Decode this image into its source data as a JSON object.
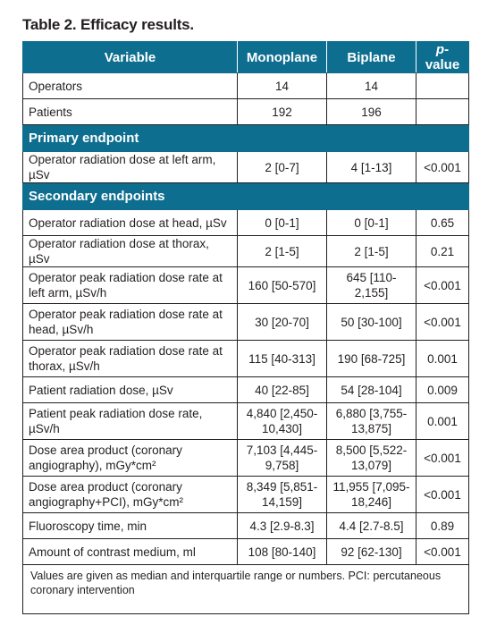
{
  "caption": "Table 2. Efficacy results.",
  "headers": {
    "variable": "Variable",
    "monoplane": "Monoplane",
    "biplane": "Biplane",
    "pvalue_p": "p",
    "pvalue_rest": "-value"
  },
  "rows_top": [
    {
      "variable": "Operators",
      "mono": "14",
      "bi": "14",
      "p": ""
    },
    {
      "variable": "Patients",
      "mono": "192",
      "bi": "196",
      "p": ""
    }
  ],
  "section_primary": "Primary endpoint",
  "rows_primary": [
    {
      "variable": "Operator radiation dose at left arm, µSv",
      "mono": "2 [0-7]",
      "bi": "4 [1-13]",
      "p": "<0.001"
    }
  ],
  "section_secondary": "Secondary endpoints",
  "rows_secondary": [
    {
      "variable": "Operator radiation dose at head, µSv",
      "mono": "0 [0-1]",
      "bi": "0 [0-1]",
      "p": "0.65"
    },
    {
      "variable": "Operator radiation dose at thorax, µSv",
      "mono": "2 [1-5]",
      "bi": "2 [1-5]",
      "p": "0.21"
    },
    {
      "variable": "Operator peak radiation dose rate at left arm, µSv/h",
      "mono": "160 [50-570]",
      "bi": "645 [110-2,155]",
      "p": "<0.001"
    },
    {
      "variable": "Operator peak radiation dose rate at head, µSv/h",
      "mono": "30 [20-70]",
      "bi": "50 [30-100]",
      "p": "<0.001"
    },
    {
      "variable": "Operator peak radiation dose rate at thorax, µSv/h",
      "mono": "115 [40-313]",
      "bi": "190 [68-725]",
      "p": "0.001"
    },
    {
      "variable": "Patient radiation dose, µSv",
      "mono": "40 [22-85]",
      "bi": "54 [28-104]",
      "p": "0.009"
    },
    {
      "variable": "Patient peak radiation dose rate, µSv/h",
      "mono": "4,840 [2,450-10,430]",
      "bi": "6,880 [3,755-13,875]",
      "p": "0.001"
    },
    {
      "variable": "Dose area product (coronary angiography), mGy*cm²",
      "mono": "7,103 [4,445-9,758]",
      "bi": "8,500 [5,522-13,079]",
      "p": "<0.001"
    },
    {
      "variable": "Dose area product (coronary angiography+PCI), mGy*cm²",
      "mono": "8,349 [5,851-14,159]",
      "bi": "11,955 [7,095-18,246]",
      "p": "<0.001"
    },
    {
      "variable": "Fluoroscopy time, min",
      "mono": "4.3 [2.9-8.3]",
      "bi": "4.4 [2.7-8.5]",
      "p": "0.89"
    },
    {
      "variable": "Amount of contrast medium, ml",
      "mono": "108 [80-140]",
      "bi": "92 [62-130]",
      "p": "<0.001"
    }
  ],
  "footnote": "Values are given as median and interquartile range or numbers. PCI: percutaneous coronary intervention"
}
